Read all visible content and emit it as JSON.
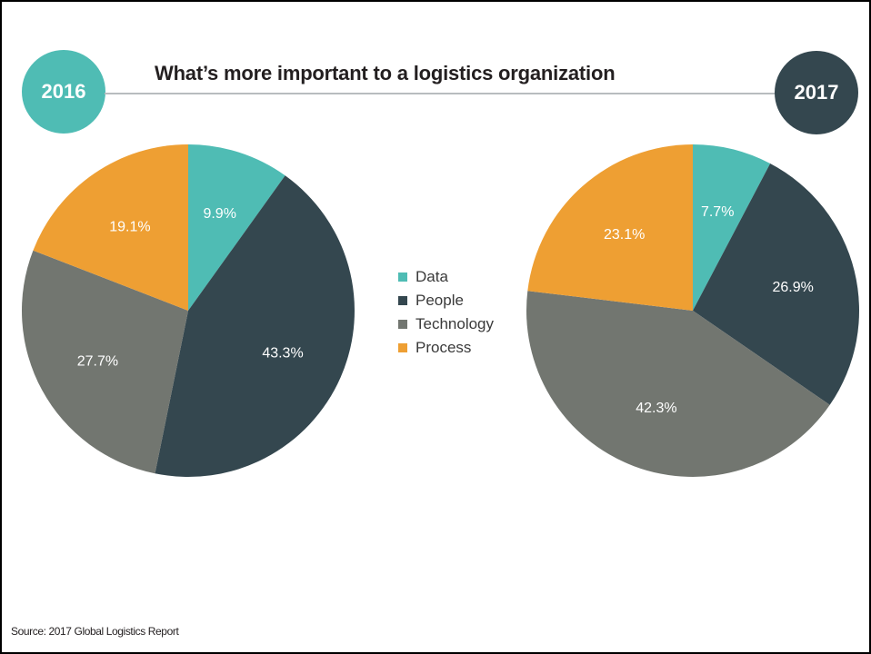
{
  "title": "What’s more important to a logistics organization",
  "source": "Source: 2017 Global Logistics Report",
  "colors": {
    "Data": "#4fbcb4",
    "People": "#34474f",
    "Technology": "#727670",
    "Process": "#ee9f33"
  },
  "chart_data": [
    {
      "type": "pie",
      "title": "2016",
      "categories": [
        "Data",
        "People",
        "Technology",
        "Process"
      ],
      "values": [
        9.9,
        43.3,
        27.7,
        19.1
      ],
      "labels": [
        "9.9%",
        "43.3%",
        "27.7%",
        "19.1%"
      ],
      "legend": "center"
    },
    {
      "type": "pie",
      "title": "2017",
      "categories": [
        "Data",
        "People",
        "Technology",
        "Process"
      ],
      "values": [
        7.7,
        26.9,
        42.3,
        23.1
      ],
      "labels": [
        "7.7%",
        "26.9%",
        "42.3%",
        "23.1%"
      ],
      "legend": "center"
    }
  ]
}
